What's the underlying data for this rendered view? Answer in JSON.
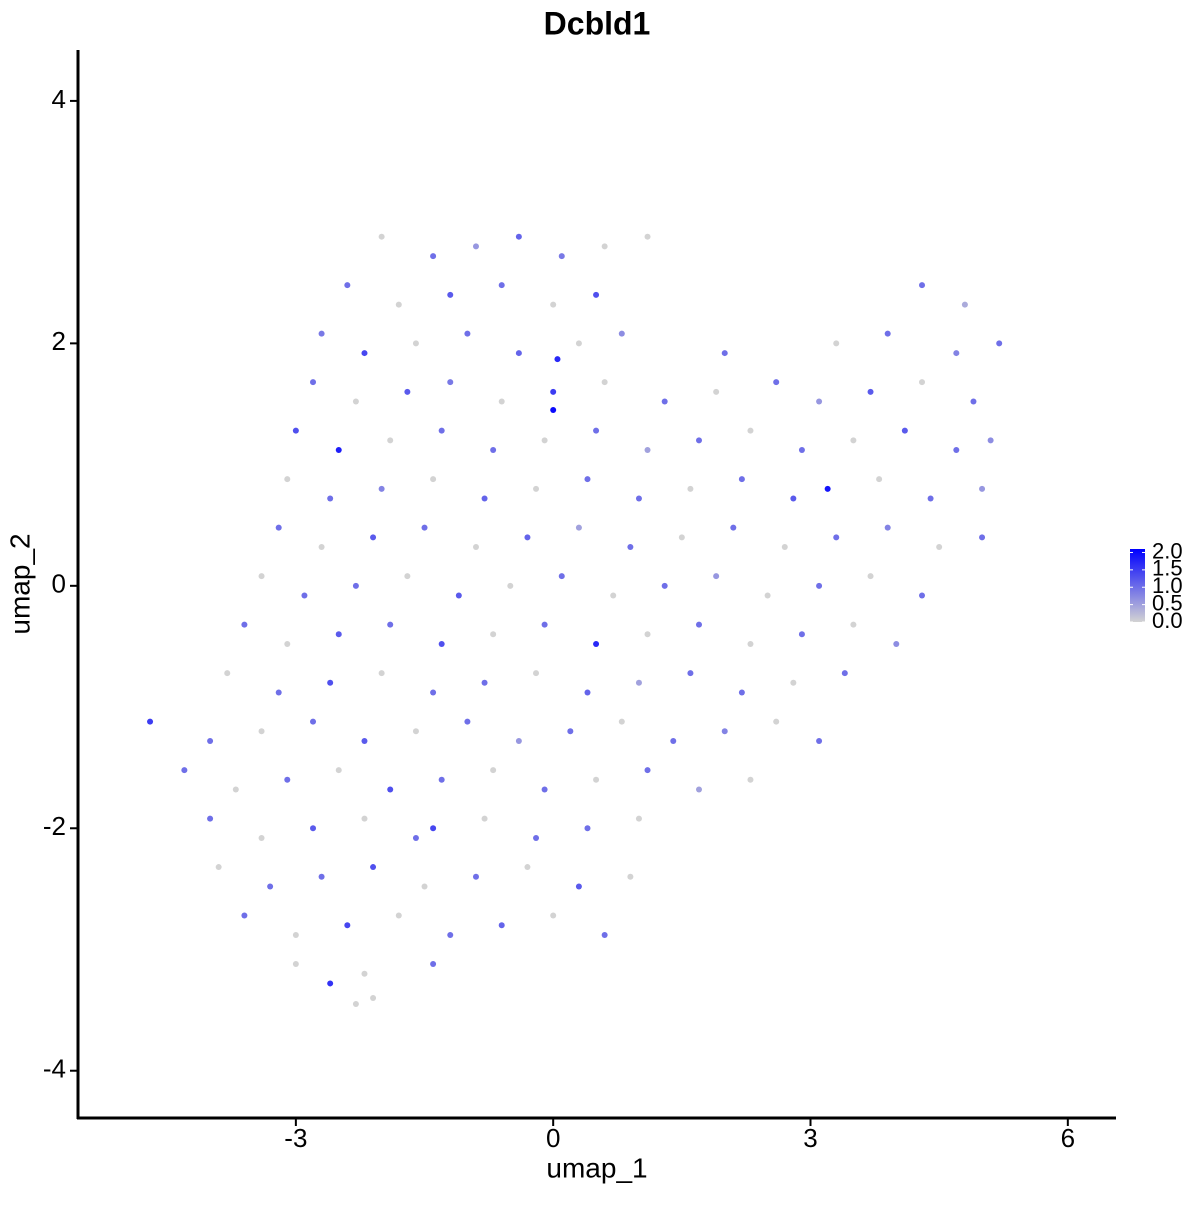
{
  "chart_data": {
    "type": "scatter",
    "title": "Dcbld1",
    "x_label": "umap_1",
    "y_label": "umap_2",
    "xlim": [
      -5.54,
      6.55
    ],
    "ylim": [
      -4.39,
      4.42
    ],
    "xticks": [
      -3,
      0,
      3,
      6
    ],
    "yticks": [
      -4,
      -2,
      0,
      2,
      4
    ],
    "color_low": "#d3d3d3",
    "color_high": "#0000ff",
    "colorlim": [
      0,
      2.1
    ],
    "color_ticks": [
      {
        "value": 0,
        "label": "0.0"
      },
      {
        "value": 0.5,
        "label": "0.5"
      },
      {
        "value": 1,
        "label": "1.0"
      },
      {
        "value": 1.5,
        "label": "1.5"
      },
      {
        "value": 2,
        "label": "2.0"
      }
    ],
    "x": [
      -2.0,
      -1.4,
      -0.9,
      -0.4,
      0.1,
      0.6,
      1.1,
      -2.4,
      -1.8,
      -1.2,
      -0.6,
      0.0,
      0.5,
      4.3,
      4.8,
      -2.7,
      -2.2,
      -1.6,
      -1.0,
      -0.4,
      0.3,
      0.8,
      2.0,
      3.3,
      3.9,
      4.7,
      5.2,
      -2.8,
      -2.3,
      -1.7,
      -1.2,
      -0.6,
      0.0,
      0.6,
      1.3,
      1.9,
      2.6,
      3.1,
      3.7,
      4.3,
      4.9,
      -3.0,
      -2.5,
      -1.9,
      -1.3,
      -0.7,
      -0.1,
      0.5,
      1.1,
      1.7,
      2.3,
      2.9,
      3.5,
      4.1,
      4.7,
      5.1,
      -3.1,
      -2.6,
      -2.0,
      -1.4,
      -0.8,
      -0.2,
      0.4,
      1.0,
      1.6,
      2.2,
      2.8,
      3.2,
      3.8,
      4.4,
      5.0,
      -3.2,
      -2.7,
      -2.1,
      -1.5,
      -0.9,
      -0.3,
      0.3,
      0.9,
      1.5,
      2.1,
      2.7,
      3.3,
      3.9,
      4.5,
      5.0,
      -3.4,
      -2.9,
      -2.3,
      -1.7,
      -1.1,
      -0.5,
      0.1,
      0.7,
      1.3,
      1.9,
      2.5,
      3.1,
      3.7,
      4.3,
      -3.6,
      -3.1,
      -2.5,
      -1.9,
      -1.3,
      -0.7,
      -0.1,
      0.5,
      1.1,
      1.7,
      2.3,
      2.9,
      3.5,
      4.0,
      -3.8,
      -3.2,
      -2.6,
      -2.0,
      -1.4,
      -0.8,
      -0.2,
      0.4,
      1.0,
      1.6,
      2.2,
      2.8,
      3.4,
      -4.7,
      -4.0,
      -3.4,
      -2.8,
      -2.2,
      -1.6,
      -1.0,
      -0.4,
      0.2,
      0.8,
      1.4,
      2.0,
      2.6,
      3.1,
      -4.3,
      -3.7,
      -3.1,
      -2.5,
      -1.9,
      -1.3,
      -0.7,
      -0.1,
      0.5,
      1.1,
      1.7,
      2.3,
      -4.0,
      -3.4,
      -2.8,
      -2.2,
      -1.6,
      -1.4,
      -0.8,
      -0.2,
      0.4,
      1.0,
      -3.9,
      -3.3,
      -2.7,
      -2.1,
      -1.5,
      -0.9,
      -0.3,
      0.3,
      0.9,
      -3.6,
      -3.0,
      -2.4,
      -1.8,
      -1.2,
      -0.6,
      0.0,
      0.6,
      -3.0,
      -2.6,
      -2.2,
      -1.4,
      -2.3,
      -2.1,
      0.0,
      0.05
    ],
    "y": [
      2.88,
      2.72,
      2.8,
      2.88,
      2.72,
      2.8,
      2.88,
      2.48,
      2.32,
      2.4,
      2.48,
      2.32,
      2.4,
      2.48,
      2.32,
      2.08,
      1.92,
      2.0,
      2.08,
      1.92,
      2.0,
      2.08,
      1.92,
      2.0,
      2.08,
      1.92,
      2.0,
      1.68,
      1.52,
      1.6,
      1.68,
      1.52,
      1.6,
      1.68,
      1.52,
      1.6,
      1.68,
      1.52,
      1.6,
      1.68,
      1.52,
      1.28,
      1.12,
      1.2,
      1.28,
      1.12,
      1.2,
      1.28,
      1.12,
      1.2,
      1.28,
      1.12,
      1.2,
      1.28,
      1.12,
      1.2,
      0.88,
      0.72,
      0.8,
      0.88,
      0.72,
      0.8,
      0.88,
      0.72,
      0.8,
      0.88,
      0.72,
      0.8,
      0.88,
      0.72,
      0.8,
      0.48,
      0.32,
      0.4,
      0.48,
      0.32,
      0.4,
      0.48,
      0.32,
      0.4,
      0.48,
      0.32,
      0.4,
      0.48,
      0.32,
      0.4,
      0.08,
      -0.08,
      0,
      0.08,
      -0.08,
      0,
      0.08,
      -0.08,
      0,
      0.08,
      -0.08,
      0,
      0.08,
      -0.08,
      -0.32,
      -0.48,
      -0.4,
      -0.32,
      -0.48,
      -0.4,
      -0.32,
      -0.48,
      -0.4,
      -0.32,
      -0.48,
      -0.4,
      -0.32,
      -0.48,
      -0.72,
      -0.88,
      -0.8,
      -0.72,
      -0.88,
      -0.8,
      -0.72,
      -0.88,
      -0.8,
      -0.72,
      -0.88,
      -0.8,
      -0.72,
      -1.12,
      -1.28,
      -1.2,
      -1.12,
      -1.28,
      -1.2,
      -1.12,
      -1.28,
      -1.2,
      -1.12,
      -1.28,
      -1.2,
      -1.12,
      -1.28,
      -1.52,
      -1.68,
      -1.6,
      -1.52,
      -1.68,
      -1.6,
      -1.52,
      -1.68,
      -1.6,
      -1.52,
      -1.68,
      -1.6,
      -1.92,
      -2.08,
      -2.0,
      -1.92,
      -2.08,
      -2.0,
      -1.92,
      -2.08,
      -2.0,
      -1.92,
      -2.32,
      -2.48,
      -2.4,
      -2.32,
      -2.48,
      -2.4,
      -2.32,
      -2.48,
      -2.4,
      -2.72,
      -2.88,
      -2.8,
      -2.72,
      -2.88,
      -2.8,
      -2.72,
      -2.88,
      -3.12,
      -3.28,
      -3.2,
      -3.12,
      -3.45,
      -3.4,
      1.45,
      1.87
    ],
    "expression": [
      0,
      1,
      0.6,
      1.1,
      0.9,
      0,
      0,
      1,
      0,
      1.2,
      1,
      0,
      1.3,
      1,
      0.4,
      0.9,
      1.4,
      0,
      1,
      1.1,
      0,
      0.7,
      1,
      0,
      1,
      0.8,
      1,
      1,
      0,
      1.2,
      0.9,
      0,
      1.5,
      0,
      1,
      0,
      1,
      0.6,
      1.2,
      0,
      1,
      1.3,
      1.8,
      0,
      1,
      1,
      0,
      1,
      0.5,
      1,
      0,
      1,
      0,
      1.2,
      1,
      0.7,
      0,
      1,
      0.8,
      0,
      1.1,
      0,
      1,
      1,
      0,
      1,
      1.2,
      1.9,
      0,
      1,
      0.6,
      1,
      0,
      1.2,
      1,
      0,
      1.1,
      0.5,
      1,
      0,
      1,
      0,
      1,
      0.8,
      0,
      1,
      0,
      1,
      1,
      0,
      1.2,
      0,
      1,
      0,
      1,
      0.6,
      0,
      1,
      0,
      1,
      1,
      0,
      1.2,
      1,
      1.3,
      0,
      1,
      1.7,
      0,
      1,
      0,
      1,
      0,
      0.7,
      0,
      1,
      1.3,
      0,
      1,
      1,
      0,
      1.1,
      0.5,
      1,
      1,
      0,
      1,
      1.5,
      1,
      0,
      1,
      1.2,
      0,
      1,
      0.6,
      1,
      0,
      1,
      0.8,
      0,
      1,
      1,
      0,
      1,
      0,
      1.3,
      1,
      0,
      1,
      0,
      1,
      0.5,
      0,
      1,
      0,
      1.2,
      0,
      1,
      1.4,
      0,
      1,
      1,
      0,
      0,
      1,
      1,
      1.3,
      0,
      1,
      0,
      1.2,
      0,
      1,
      0,
      1.4,
      0,
      1,
      1.1,
      0,
      1,
      0,
      1.6,
      0,
      1,
      0,
      0,
      2.0,
      1.7
    ]
  }
}
